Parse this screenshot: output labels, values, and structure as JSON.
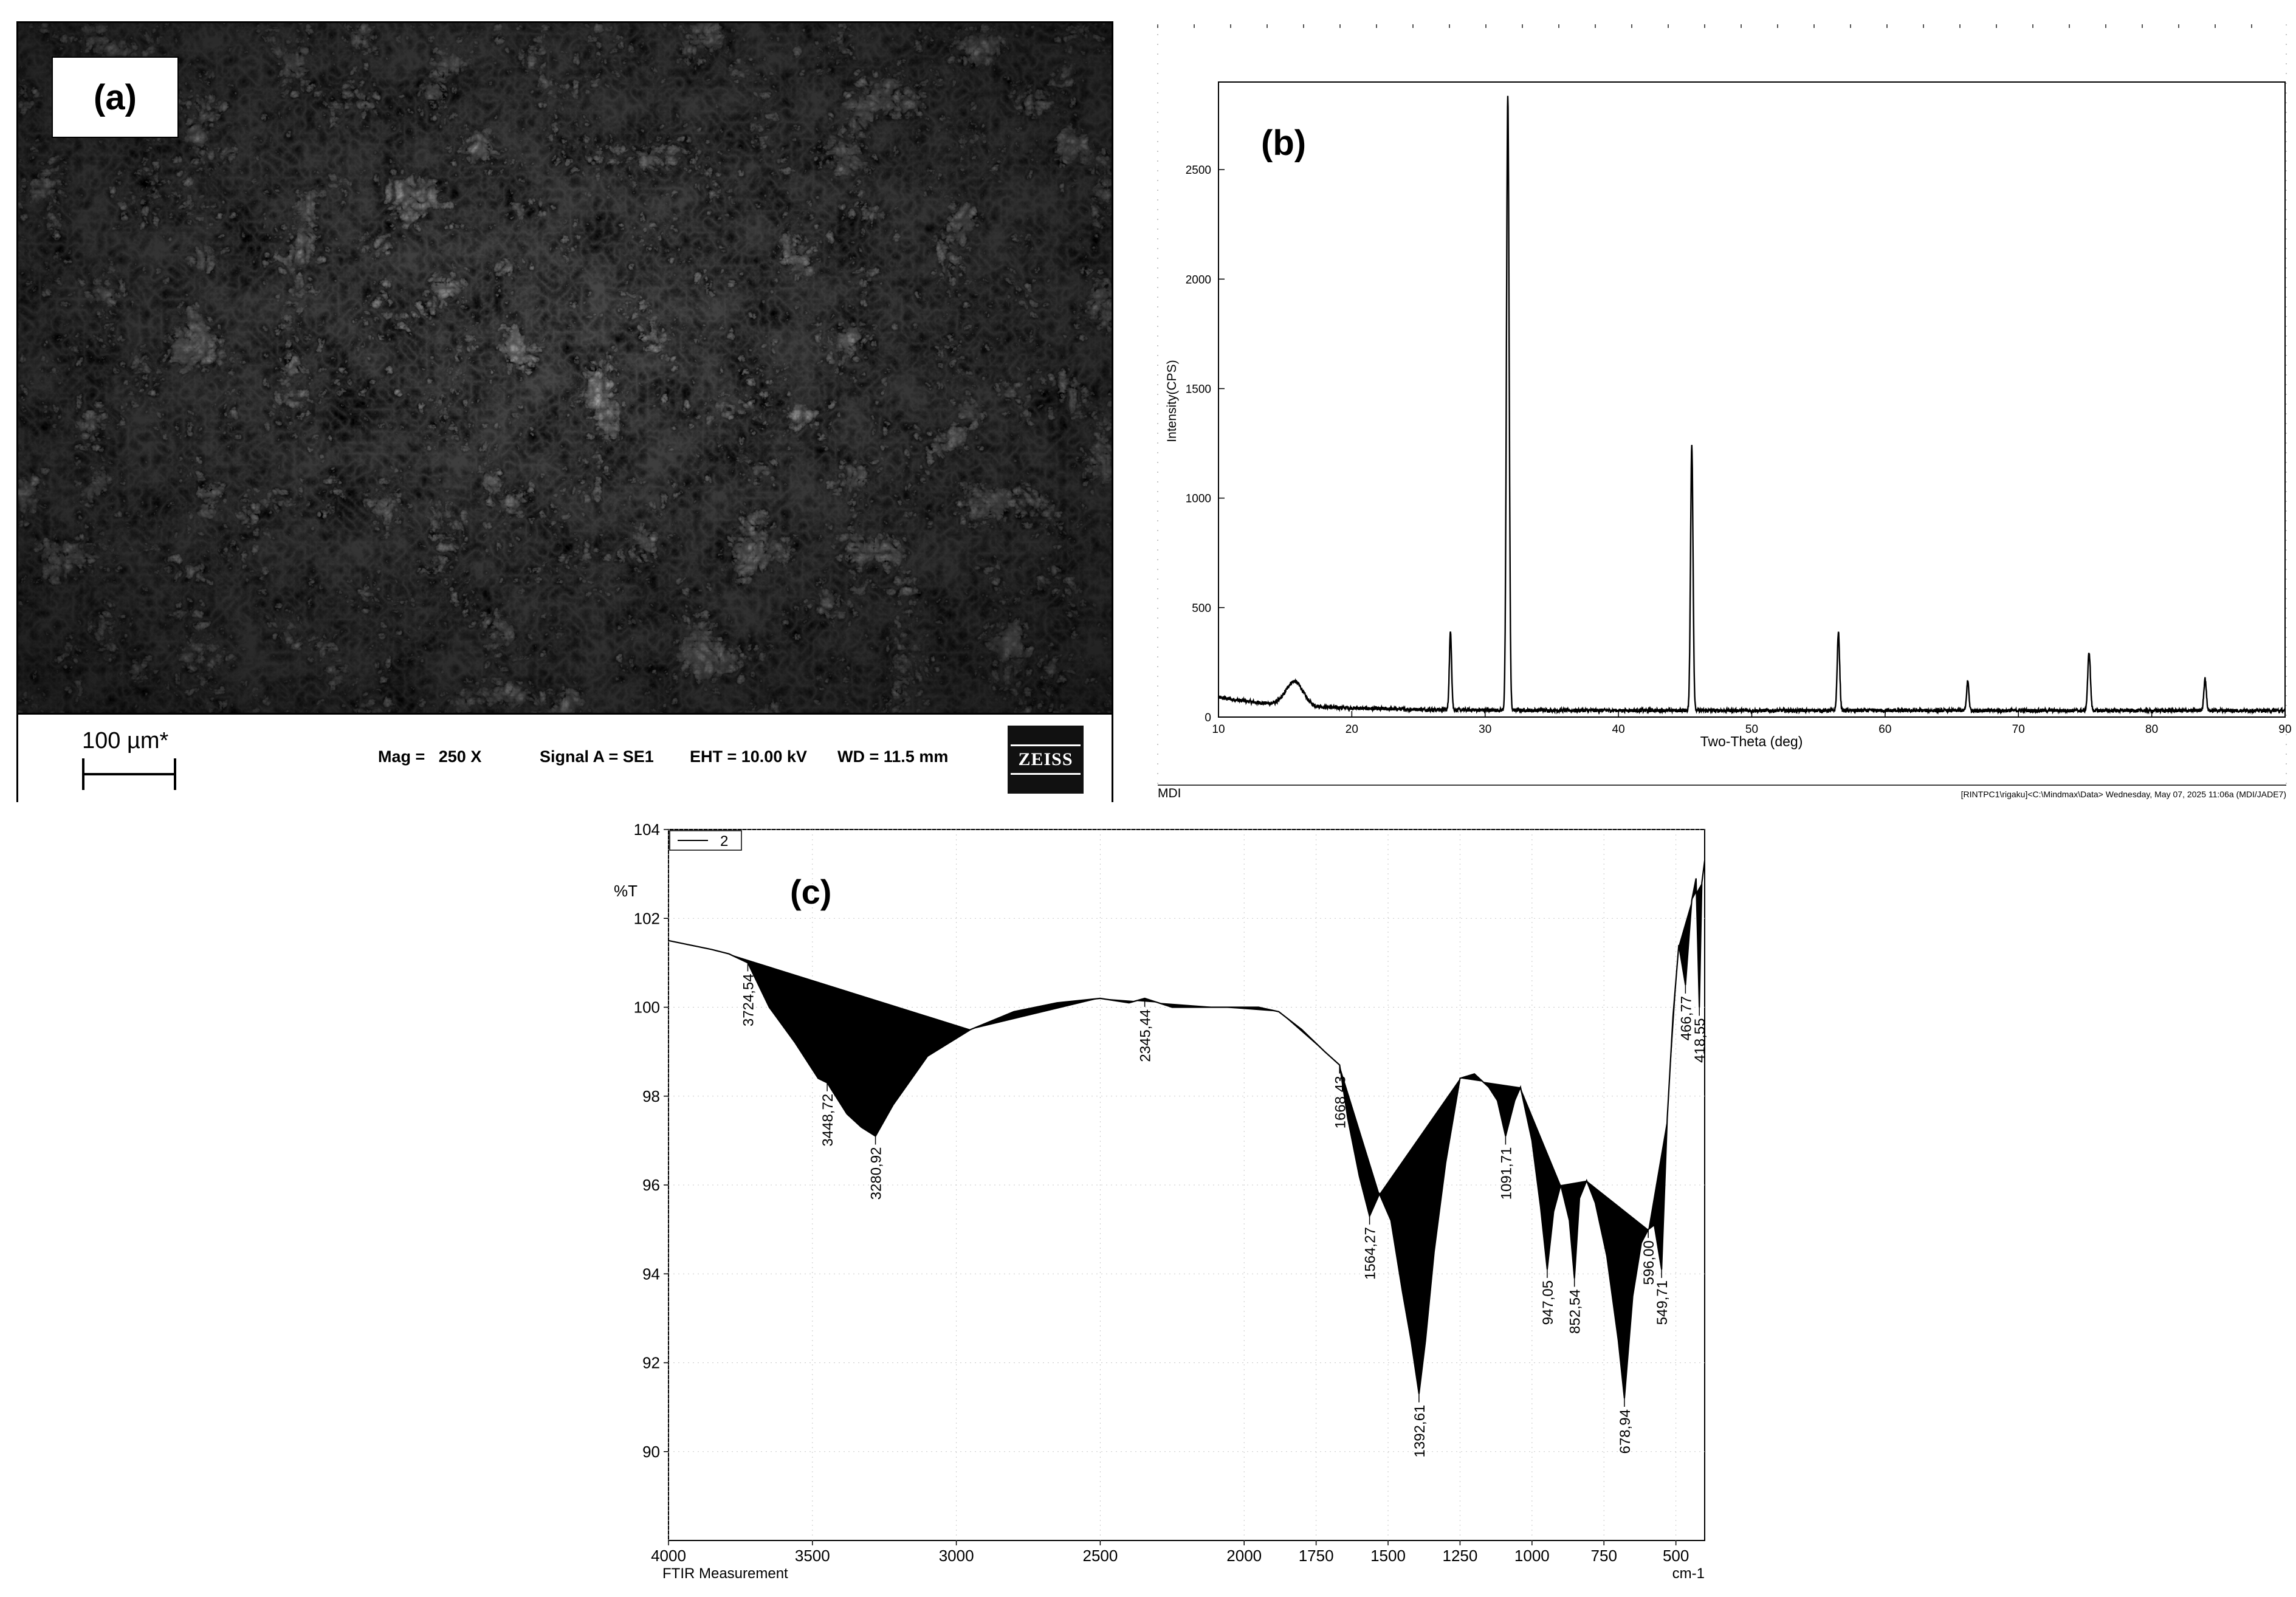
{
  "panel_a": {
    "label": "(a)",
    "scale_bar_label": "100 µm*",
    "mag": "Mag =   250 X",
    "signal": "Signal A = SE1",
    "eht": "EHT = 10.00 kV",
    "wd": "WD = 11.5 mm",
    "logo": "ZEISS"
  },
  "panel_b": {
    "label": "(b)",
    "footer_left": "MDI",
    "footer_right": "[RINTPC1\\rigaku]<C:\\Mindmax\\Data> Wednesday, May 07, 2025 11:06a (MDI/JADE7)"
  },
  "panel_c": {
    "label": "(c)",
    "legend": "2",
    "footer_left": "FTIR Measurement",
    "footer_right": "cm-1",
    "ylabel_top": "%T"
  },
  "chart_data": [
    {
      "type": "line",
      "title": "",
      "xlabel": "Two-Theta (deg)",
      "ylabel": "Intensity(CPS)",
      "xlim": [
        10,
        90
      ],
      "ylim": [
        0,
        2900
      ],
      "xticks": [
        10,
        20,
        30,
        40,
        50,
        60,
        70,
        80,
        90
      ],
      "yticks": [
        0,
        500,
        1000,
        1500,
        2000,
        2500
      ],
      "peaks": [
        {
          "x": 15.7,
          "y": 150,
          "w": 0.9
        },
        {
          "x": 27.4,
          "y": 390,
          "w": 0.12
        },
        {
          "x": 31.7,
          "y": 2840,
          "w": 0.14
        },
        {
          "x": 45.5,
          "y": 1250,
          "w": 0.13
        },
        {
          "x": 56.5,
          "y": 390,
          "w": 0.13
        },
        {
          "x": 66.2,
          "y": 170,
          "w": 0.12
        },
        {
          "x": 75.3,
          "y": 300,
          "w": 0.14
        },
        {
          "x": 84.0,
          "y": 180,
          "w": 0.13
        }
      ]
    },
    {
      "type": "line",
      "title": "",
      "xlabel": "cm-1",
      "ylabel": "%T",
      "xlim": [
        4000,
        400
      ],
      "ylim": [
        88,
        104
      ],
      "xticks": [
        4000,
        3500,
        3000,
        2500,
        2000,
        1750,
        1500,
        1250,
        1000,
        750,
        500
      ],
      "yticks": [
        90,
        92,
        94,
        96,
        98,
        100,
        102,
        104
      ],
      "series": [
        {
          "x": [
            4000,
            3850,
            3790,
            3724.54,
            3650,
            3560,
            3480,
            3448.72,
            3380,
            3330,
            3280.92,
            3220,
            3100,
            2950,
            2800,
            2650,
            2500,
            2400,
            2345.44,
            2250,
            2100,
            1950,
            1880,
            1800,
            1720,
            1668.43,
            1640,
            1600,
            1564.27,
            1530,
            1490,
            1450,
            1420,
            1392.61,
            1370,
            1340,
            1300,
            1250,
            1200,
            1150,
            1120,
            1091.71,
            1060,
            1040,
            1000,
            970,
            947.05,
            925,
            900,
            870,
            852.54,
            835,
            810,
            780,
            740,
            700,
            678.94,
            650,
            620,
            596,
            575,
            549.71,
            530,
            510,
            490,
            466.77,
            445,
            430,
            418.55,
            410,
            400
          ],
          "y": [
            101.5,
            101.3,
            101.2,
            101.0,
            100.0,
            99.2,
            98.4,
            98.3,
            97.6,
            97.3,
            97.1,
            97.8,
            98.9,
            99.5,
            99.9,
            100.1,
            100.2,
            100.1,
            100.2,
            100.0,
            100.0,
            100.0,
            99.9,
            99.5,
            99.0,
            98.7,
            97.5,
            96.2,
            95.3,
            95.8,
            95.2,
            93.6,
            92.5,
            91.3,
            92.5,
            94.5,
            96.5,
            98.4,
            98.5,
            98.2,
            97.9,
            97.1,
            97.9,
            98.2,
            97.0,
            95.5,
            94.1,
            95.4,
            96.0,
            95.2,
            93.9,
            95.7,
            96.1,
            95.6,
            94.4,
            92.5,
            91.2,
            93.5,
            94.7,
            95.0,
            95.1,
            94.1,
            97.5,
            99.8,
            101.4,
            100.5,
            102.4,
            102.9,
            100.0,
            102.8,
            103.3
          ]
        }
      ],
      "annotations": [
        {
          "x": 3724.54,
          "y": 101.0,
          "label": "3724,54"
        },
        {
          "x": 3448.72,
          "y": 98.3,
          "label": "3448,72"
        },
        {
          "x": 3280.92,
          "y": 97.1,
          "label": "3280,92"
        },
        {
          "x": 2345.44,
          "y": 100.2,
          "label": "2345,44"
        },
        {
          "x": 1668.43,
          "y": 98.7,
          "label": "1668,43"
        },
        {
          "x": 1564.27,
          "y": 95.3,
          "label": "1564,27"
        },
        {
          "x": 1392.61,
          "y": 91.3,
          "label": "1392,61"
        },
        {
          "x": 1091.71,
          "y": 97.1,
          "label": "1091,71"
        },
        {
          "x": 947.05,
          "y": 94.1,
          "label": "947,05"
        },
        {
          "x": 852.54,
          "y": 93.9,
          "label": "852,54"
        },
        {
          "x": 678.94,
          "y": 91.2,
          "label": "678,94"
        },
        {
          "x": 596.0,
          "y": 95.0,
          "label": "596,00"
        },
        {
          "x": 549.71,
          "y": 94.1,
          "label": "549,71"
        },
        {
          "x": 466.77,
          "y": 100.5,
          "label": "466,77"
        },
        {
          "x": 418.55,
          "y": 100.0,
          "label": "418,55"
        }
      ]
    }
  ]
}
